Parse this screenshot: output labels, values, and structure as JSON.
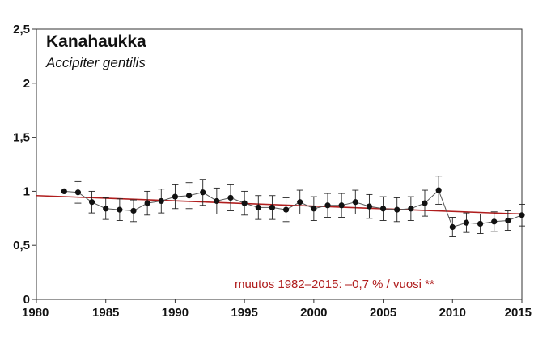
{
  "chart_data": {
    "type": "line",
    "title": "Kanahaukka",
    "subtitle": "Accipiter gentilis",
    "xlim": [
      1980,
      2015
    ],
    "ylim": [
      0,
      2.5
    ],
    "xticks": [
      1980,
      1985,
      1990,
      1995,
      2000,
      2005,
      2010,
      2015
    ],
    "yticks": [
      0,
      0.5,
      1,
      1.5,
      2,
      2.5
    ],
    "xtick_labels": [
      "1980",
      "1985",
      "1990",
      "1995",
      "2000",
      "2005",
      "2010",
      "2015"
    ],
    "ytick_labels": [
      "0",
      "0,5",
      "1",
      "1,5",
      "2",
      "2,5"
    ],
    "grid": false,
    "series": [
      {
        "type": "line-points-errorbars",
        "color": "#222222",
        "x": [
          1982,
          1983,
          1984,
          1985,
          1986,
          1987,
          1988,
          1989,
          1990,
          1991,
          1992,
          1993,
          1994,
          1995,
          1996,
          1997,
          1998,
          1999,
          2000,
          2001,
          2002,
          2003,
          2004,
          2005,
          2006,
          2007,
          2008,
          2009,
          2010,
          2011,
          2012,
          2013,
          2014,
          2015
        ],
        "y": [
          1.0,
          0.99,
          0.9,
          0.84,
          0.83,
          0.82,
          0.89,
          0.91,
          0.95,
          0.96,
          0.99,
          0.91,
          0.94,
          0.89,
          0.85,
          0.85,
          0.83,
          0.9,
          0.84,
          0.87,
          0.87,
          0.9,
          0.86,
          0.84,
          0.83,
          0.84,
          0.89,
          1.01,
          0.67,
          0.71,
          0.7,
          0.72,
          0.73,
          0.78
        ],
        "err": [
          0,
          0.1,
          0.1,
          0.1,
          0.1,
          0.1,
          0.11,
          0.11,
          0.11,
          0.12,
          0.12,
          0.12,
          0.12,
          0.11,
          0.11,
          0.11,
          0.11,
          0.11,
          0.11,
          0.11,
          0.11,
          0.11,
          0.11,
          0.11,
          0.11,
          0.11,
          0.12,
          0.13,
          0.09,
          0.09,
          0.09,
          0.09,
          0.09,
          0.1
        ]
      },
      {
        "type": "trend",
        "color": "#b01e1e",
        "x": [
          1980,
          2015
        ],
        "y": [
          0.96,
          0.79
        ]
      }
    ],
    "annotation": "muutos  1982–2015: –0,7 % / vuosi **"
  }
}
